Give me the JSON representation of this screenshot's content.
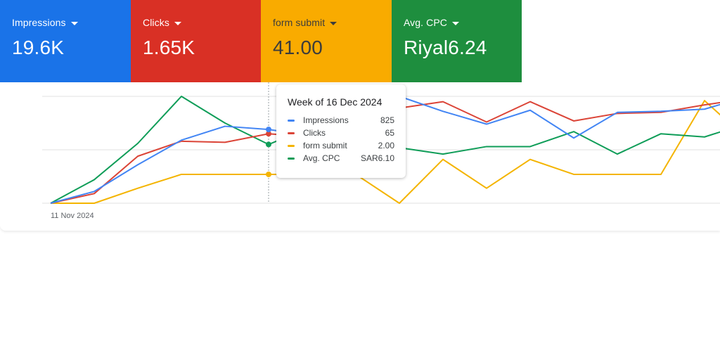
{
  "cards": [
    {
      "label": "Impressions",
      "value": "19.6K",
      "color": "#1a73e8",
      "text_color": "#ffffff"
    },
    {
      "label": "Clicks",
      "value": "1.65K",
      "color": "#d93025",
      "text_color": "#ffffff"
    },
    {
      "label": "form submit",
      "value": "41.00",
      "color": "#f9ab00",
      "text_color": "#3c3c3c"
    },
    {
      "label": "Avg. CPC",
      "value": "Riyal6.24",
      "color": "#1e8e3e",
      "text_color": "#ffffff"
    }
  ],
  "tooltip": {
    "title": "Week of 16 Dec 2024",
    "rows": [
      {
        "name": "Impressions",
        "value": "825",
        "color": "#4285f4"
      },
      {
        "name": "Clicks",
        "value": "65",
        "color": "#db4437"
      },
      {
        "name": "form submit",
        "value": "2.00",
        "color": "#f4b400"
      },
      {
        "name": "Avg. CPC",
        "value": "SAR6.10",
        "color": "#0f9d58"
      }
    ]
  },
  "chart_data": {
    "type": "line",
    "x_first_label": "11 Nov 2024",
    "x_count": 17,
    "highlight_index": 5,
    "gridlines": 3,
    "series": [
      {
        "name": "Impressions",
        "color": "#4285f4",
        "values": [
          0,
          0.11,
          0.36,
          0.59,
          0.72,
          0.69,
          0.63,
          0.83,
          1.0,
          0.86,
          0.74,
          0.87,
          0.61,
          0.85,
          0.86,
          0.88,
          1.0
        ]
      },
      {
        "name": "Clicks",
        "color": "#db4437",
        "values": [
          0,
          0.09,
          0.44,
          0.58,
          0.57,
          0.65,
          0.62,
          0.76,
          0.89,
          0.95,
          0.76,
          0.95,
          0.77,
          0.84,
          0.85,
          0.92,
          0.98
        ]
      },
      {
        "name": "form submit",
        "color": "#f4b400",
        "values": [
          0,
          0,
          0.14,
          0.27,
          0.27,
          0.27,
          0.27,
          0.27,
          0,
          0.41,
          0.14,
          0.41,
          0.27,
          0.27,
          0.27,
          0.96,
          0.59
        ]
      },
      {
        "name": "Avg. CPC",
        "color": "#0f9d58",
        "values": [
          0,
          0.22,
          0.56,
          1.0,
          0.75,
          0.55,
          0.72,
          0.65,
          0.52,
          0.46,
          0.53,
          0.53,
          0.67,
          0.46,
          0.65,
          0.62,
          0.75
        ]
      }
    ]
  }
}
